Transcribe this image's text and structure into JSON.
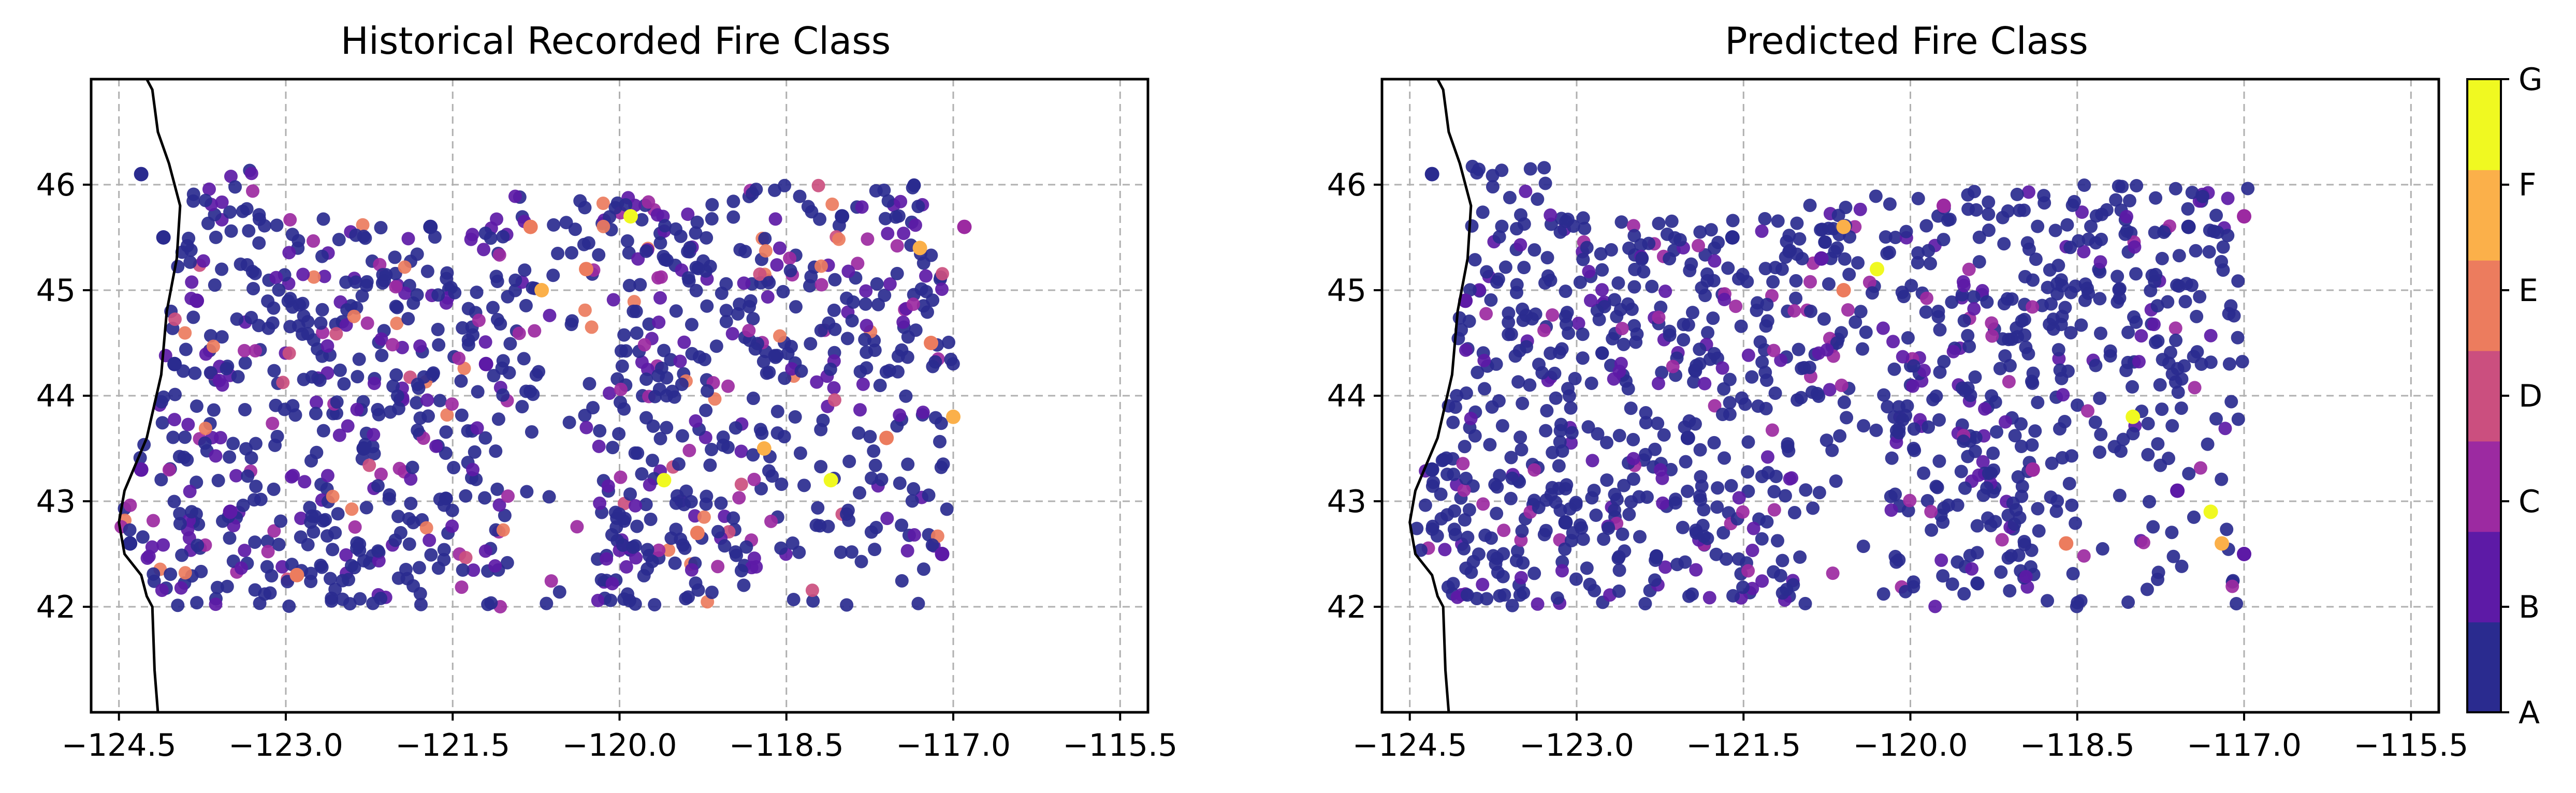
{
  "chart_data": [
    {
      "type": "scatter",
      "title": "Historical Recorded Fire Class",
      "xlabel": "",
      "ylabel": "",
      "xlim": [
        -124.75,
        -115.25
      ],
      "ylim": [
        41.0,
        47.0
      ],
      "xticks": [
        -124.5,
        -123.0,
        -121.5,
        -120.0,
        -118.5,
        -117.0,
        -115.5
      ],
      "xtick_labels": [
        "−124.5",
        "−123.0",
        "−121.5",
        "−120.0",
        "−118.5",
        "−117.0",
        "−115.5"
      ],
      "yticks": [
        42,
        43,
        44,
        45,
        46
      ],
      "ytick_labels": [
        "42",
        "43",
        "44",
        "45",
        "46"
      ],
      "grid": true,
      "sample_points": [
        {
          "lon": -124.3,
          "lat": 46.1,
          "class": "A"
        },
        {
          "lon": -124.1,
          "lat": 45.5,
          "class": "A"
        },
        {
          "lon": -123.8,
          "lat": 44.9,
          "class": "B"
        },
        {
          "lon": -124.0,
          "lat": 44.3,
          "class": "A"
        },
        {
          "lon": -124.3,
          "lat": 43.3,
          "class": "B"
        },
        {
          "lon": -124.4,
          "lat": 42.6,
          "class": "A"
        },
        {
          "lon": -123.5,
          "lat": 42.9,
          "class": "B"
        },
        {
          "lon": -122.9,
          "lat": 42.3,
          "class": "E"
        },
        {
          "lon": -122.3,
          "lat": 43.5,
          "class": "A"
        },
        {
          "lon": -121.7,
          "lat": 45.6,
          "class": "A"
        },
        {
          "lon": -121.2,
          "lat": 44.3,
          "class": "B"
        },
        {
          "lon": -120.8,
          "lat": 45.6,
          "class": "E"
        },
        {
          "lon": -120.7,
          "lat": 45.0,
          "class": "F"
        },
        {
          "lon": -120.3,
          "lat": 45.2,
          "class": "E"
        },
        {
          "lon": -119.9,
          "lat": 45.7,
          "class": "G"
        },
        {
          "lon": -119.6,
          "lat": 43.2,
          "class": "G"
        },
        {
          "lon": -119.3,
          "lat": 42.7,
          "class": "E"
        },
        {
          "lon": -118.7,
          "lat": 43.5,
          "class": "F"
        },
        {
          "lon": -118.1,
          "lat": 43.2,
          "class": "G"
        },
        {
          "lon": -117.6,
          "lat": 43.6,
          "class": "E"
        },
        {
          "lon": -117.2,
          "lat": 44.5,
          "class": "E"
        },
        {
          "lon": -117.0,
          "lat": 43.8,
          "class": "F"
        },
        {
          "lon": -117.1,
          "lat": 42.5,
          "class": "B"
        },
        {
          "lon": -118.0,
          "lat": 45.7,
          "class": "A"
        },
        {
          "lon": -117.3,
          "lat": 45.4,
          "class": "F"
        },
        {
          "lon": -116.9,
          "lat": 45.6,
          "class": "C"
        }
      ]
    },
    {
      "type": "scatter",
      "title": "Predicted Fire Class",
      "xlabel": "",
      "ylabel": "",
      "xlim": [
        -124.75,
        -115.25
      ],
      "ylim": [
        41.0,
        47.0
      ],
      "xticks": [
        -124.5,
        -123.0,
        -121.5,
        -120.0,
        -118.5,
        -117.0,
        -115.5
      ],
      "xtick_labels": [
        "−124.5",
        "−123.0",
        "−121.5",
        "−120.0",
        "−118.5",
        "−117.0",
        "−115.5"
      ],
      "yticks": [
        42,
        43,
        44,
        45,
        46
      ],
      "ytick_labels": [
        "42",
        "43",
        "44",
        "45",
        "46"
      ],
      "grid": true,
      "sample_points": [
        {
          "lon": -124.3,
          "lat": 46.1,
          "class": "A"
        },
        {
          "lon": -124.0,
          "lat": 44.9,
          "class": "B"
        },
        {
          "lon": -124.3,
          "lat": 43.3,
          "class": "A"
        },
        {
          "lon": -123.1,
          "lat": 42.8,
          "class": "A"
        },
        {
          "lon": -122.0,
          "lat": 43.6,
          "class": "A"
        },
        {
          "lon": -121.6,
          "lat": 45.5,
          "class": "A"
        },
        {
          "lon": -120.8,
          "lat": 45.3,
          "class": "B"
        },
        {
          "lon": -120.6,
          "lat": 45.6,
          "class": "F"
        },
        {
          "lon": -120.3,
          "lat": 45.2,
          "class": "G"
        },
        {
          "lon": -120.6,
          "lat": 45.0,
          "class": "E"
        },
        {
          "lon": -119.7,
          "lat": 45.8,
          "class": "C"
        },
        {
          "lon": -118.9,
          "lat": 43.3,
          "class": "C"
        },
        {
          "lon": -118.6,
          "lat": 42.6,
          "class": "E"
        },
        {
          "lon": -118.0,
          "lat": 43.8,
          "class": "G"
        },
        {
          "lon": -117.6,
          "lat": 43.1,
          "class": "B"
        },
        {
          "lon": -117.3,
          "lat": 42.9,
          "class": "G"
        },
        {
          "lon": -117.2,
          "lat": 42.6,
          "class": "F"
        },
        {
          "lon": -117.0,
          "lat": 42.5,
          "class": "B"
        },
        {
          "lon": -117.5,
          "lat": 45.6,
          "class": "A"
        },
        {
          "lon": -117.0,
          "lat": 45.7,
          "class": "C"
        }
      ]
    }
  ],
  "colorbar": {
    "labels": [
      "A",
      "B",
      "C",
      "D",
      "E",
      "F",
      "G"
    ],
    "colors": [
      "#2a2b8f",
      "#5d1aa6",
      "#9c2aa1",
      "#cb4f7f",
      "#ec7c5e",
      "#fbb04a",
      "#f0f921"
    ]
  },
  "colors": {
    "dominant_point": "#140d8c",
    "coastline": "#000000",
    "grid": "#b0b0b0"
  }
}
